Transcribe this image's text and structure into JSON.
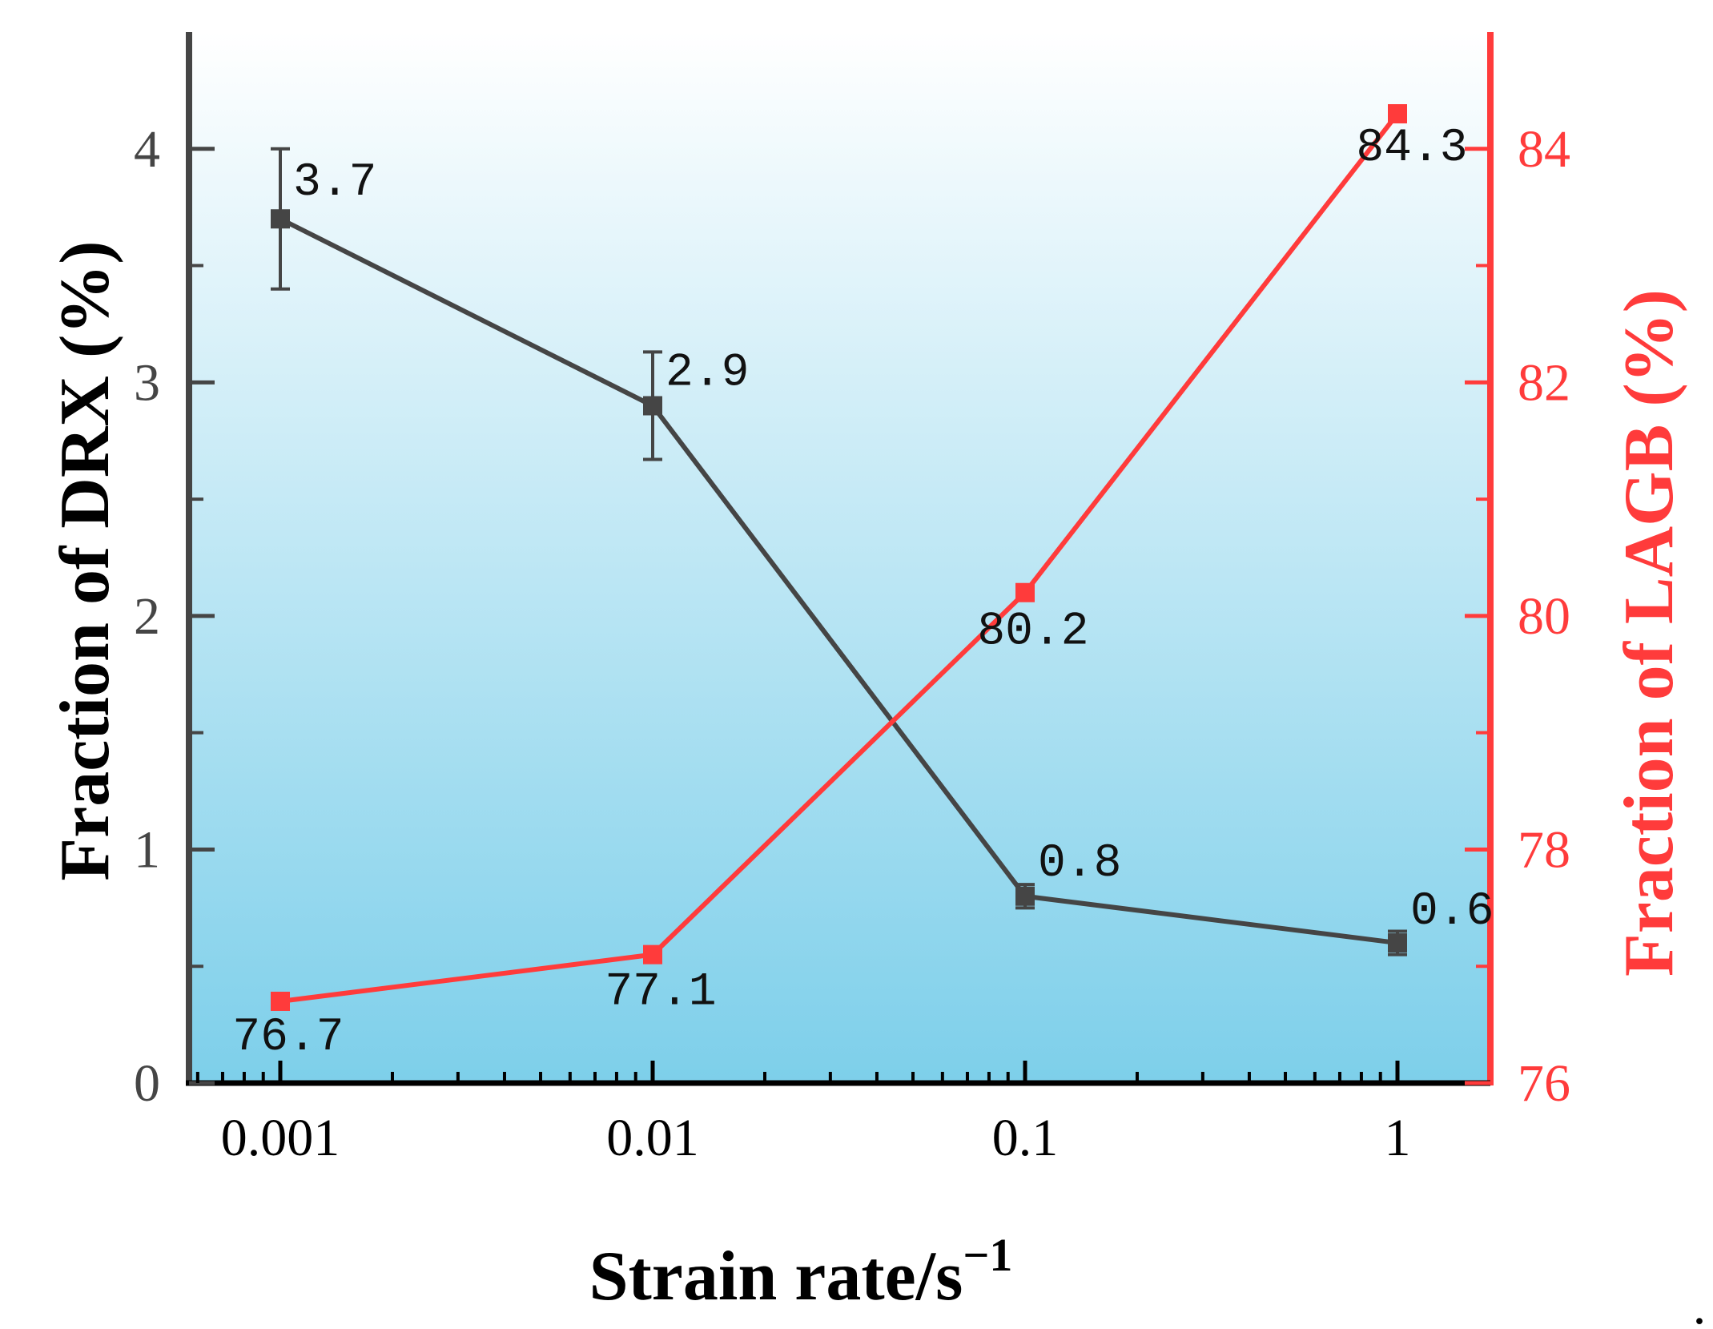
{
  "chart_data": {
    "type": "line",
    "x_scale": "log",
    "x": [
      0.001,
      0.01,
      0.1,
      1
    ],
    "x_tick_labels": [
      "0.001",
      "0.01",
      "0.1",
      "1"
    ],
    "xlabel": "Strain rate/s",
    "xlabel_sup": "−1",
    "series": [
      {
        "name": "Fraction of DRX",
        "axis": "left",
        "color": "#454545",
        "values": [
          3.7,
          2.9,
          0.8,
          0.6
        ],
        "errors": [
          0.3,
          0.23,
          0.05,
          0.05
        ],
        "labels": [
          "3.7",
          "2.9",
          "0.8",
          "0.6"
        ]
      },
      {
        "name": "Fraction of LAGB",
        "axis": "right",
        "color": "#ff3b3b",
        "values": [
          76.7,
          77.1,
          80.2,
          84.3
        ],
        "labels": [
          "76.7",
          "77.1",
          "80.2",
          "84.3"
        ]
      }
    ],
    "y_left": {
      "label": "Fraction of DRX (%)",
      "ylim": [
        0,
        4.5
      ],
      "ticks": [
        0,
        1,
        2,
        3,
        4
      ],
      "tick_labels": [
        "0",
        "1",
        "2",
        "3",
        "4"
      ],
      "color": "#454545"
    },
    "y_right": {
      "label": "Fraction of LAGB (%)",
      "ylim": [
        76,
        85
      ],
      "ticks": [
        76,
        78,
        80,
        82,
        84
      ],
      "tick_labels": [
        "76",
        "78",
        "80",
        "82",
        "84"
      ],
      "color": "#ff3b3b"
    },
    "background_gradient": [
      "#ffffff",
      "#7dcfea"
    ],
    "trailing_mark": "."
  }
}
